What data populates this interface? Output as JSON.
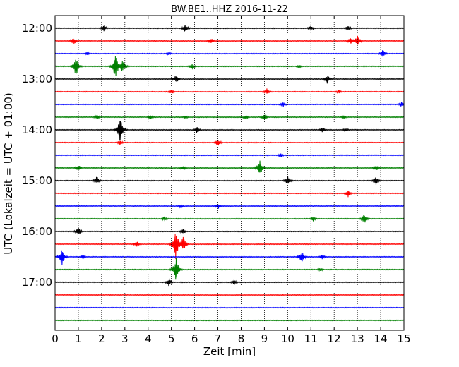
{
  "chart_data": {
    "type": "line",
    "title": "BW.BE1..HHZ 2016-11-22",
    "xlabel": "Zeit  [min]",
    "ylabel": "UTC (Lokalzeit = UTC + 01:00)",
    "xlim": [
      0,
      15
    ],
    "x_ticks": [
      0,
      1,
      2,
      3,
      4,
      5,
      6,
      7,
      8,
      9,
      10,
      11,
      12,
      13,
      14,
      15
    ],
    "x_tick_labels": [
      "0",
      "1",
      "2",
      "3",
      "4",
      "5",
      "6",
      "7",
      "8",
      "9",
      "10",
      "11",
      "12",
      "13",
      "14",
      "15"
    ],
    "y_tick_labels": [
      "12:00",
      "13:00",
      "14:00",
      "15:00",
      "16:00",
      "17:00"
    ],
    "y_tick_rows": [
      0,
      4,
      8,
      12,
      16,
      20
    ],
    "grid": {
      "x": true,
      "y": false,
      "style": "dotted"
    },
    "row_colors": [
      "#000000",
      "#ff0000",
      "#0000ff",
      "#008000"
    ],
    "series": [
      {
        "start": "12:00",
        "events": [
          [
            2.1,
            0.5
          ],
          [
            5.6,
            0.7
          ],
          [
            11.0,
            0.4
          ],
          [
            12.6,
            0.4
          ]
        ]
      },
      {
        "start": "12:15",
        "events": [
          [
            0.8,
            0.6
          ],
          [
            6.7,
            0.5
          ],
          [
            13.0,
            0.8
          ],
          [
            12.7,
            0.5
          ]
        ]
      },
      {
        "start": "12:30",
        "events": [
          [
            1.4,
            0.3
          ],
          [
            4.9,
            0.3
          ],
          [
            14.1,
            0.6
          ]
        ]
      },
      {
        "start": "12:45",
        "events": [
          [
            0.9,
            1.6
          ],
          [
            2.6,
            2.0
          ],
          [
            2.9,
            1.2
          ],
          [
            5.9,
            0.5
          ],
          [
            10.5,
            0.3
          ]
        ]
      },
      {
        "start": "13:00",
        "events": [
          [
            5.2,
            0.7
          ],
          [
            11.7,
            0.7
          ]
        ]
      },
      {
        "start": "13:15",
        "events": [
          [
            5.0,
            0.4
          ],
          [
            9.1,
            0.5
          ],
          [
            12.2,
            0.3
          ]
        ]
      },
      {
        "start": "13:30",
        "events": [
          [
            9.8,
            0.4
          ],
          [
            14.9,
            0.4
          ]
        ]
      },
      {
        "start": "13:45",
        "events": [
          [
            1.8,
            0.4
          ],
          [
            4.1,
            0.4
          ],
          [
            5.6,
            0.3
          ],
          [
            8.2,
            0.4
          ],
          [
            9.0,
            0.5
          ],
          [
            12.4,
            0.3
          ]
        ]
      },
      {
        "start": "14:00",
        "events": [
          [
            2.8,
            2.0
          ],
          [
            6.1,
            0.5
          ],
          [
            11.5,
            0.4
          ],
          [
            12.5,
            0.3
          ]
        ]
      },
      {
        "start": "14:15",
        "events": [
          [
            2.8,
            0.4
          ],
          [
            7.0,
            0.6
          ]
        ]
      },
      {
        "start": "14:30",
        "events": [
          [
            9.7,
            0.3
          ]
        ]
      },
      {
        "start": "14:45",
        "events": [
          [
            1.0,
            0.5
          ],
          [
            5.5,
            0.4
          ],
          [
            8.8,
            1.3
          ],
          [
            13.8,
            0.5
          ]
        ]
      },
      {
        "start": "15:00",
        "events": [
          [
            1.8,
            0.7
          ],
          [
            10.0,
            0.8
          ],
          [
            13.8,
            0.7
          ]
        ]
      },
      {
        "start": "15:15",
        "events": [
          [
            12.6,
            0.6
          ]
        ]
      },
      {
        "start": "15:30",
        "events": [
          [
            5.4,
            0.3
          ],
          [
            7.0,
            0.5
          ]
        ]
      },
      {
        "start": "15:45",
        "events": [
          [
            4.7,
            0.4
          ],
          [
            11.1,
            0.4
          ],
          [
            13.3,
            0.8
          ]
        ]
      },
      {
        "start": "16:00",
        "events": [
          [
            1.0,
            0.7
          ],
          [
            5.5,
            0.4
          ]
        ]
      },
      {
        "start": "16:15",
        "events": [
          [
            3.5,
            0.5
          ],
          [
            5.2,
            2.5
          ],
          [
            5.5,
            1.2
          ]
        ]
      },
      {
        "start": "16:30",
        "events": [
          [
            0.3,
            1.3
          ],
          [
            1.2,
            0.3
          ],
          [
            10.6,
            1.0
          ],
          [
            11.5,
            0.4
          ]
        ]
      },
      {
        "start": "16:45",
        "events": [
          [
            5.2,
            1.8
          ],
          [
            11.4,
            0.3
          ]
        ]
      },
      {
        "start": "17:00",
        "events": [
          [
            4.9,
            0.6
          ],
          [
            7.7,
            0.4
          ]
        ]
      },
      {
        "start": "17:15",
        "events": []
      },
      {
        "start": "17:30",
        "events": []
      },
      {
        "start": "17:45",
        "events": []
      }
    ]
  }
}
